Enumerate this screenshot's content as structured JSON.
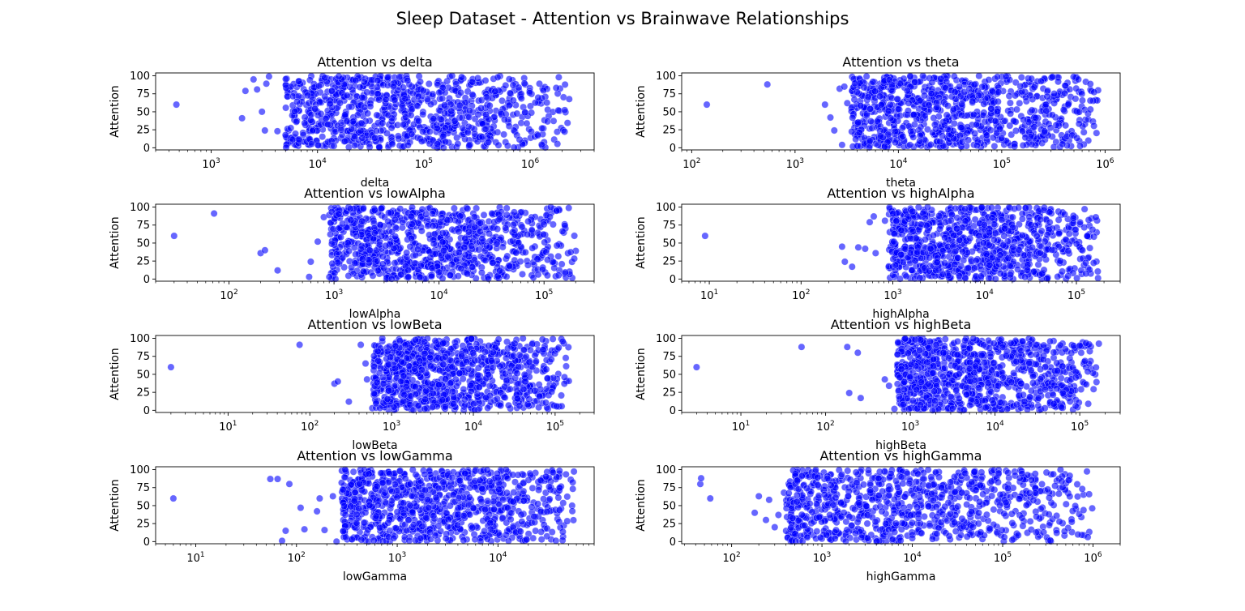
{
  "title": "Sleep Dataset - Attention vs Brainwave Relationships",
  "colors": {
    "point_fill": "#0000ff",
    "point_edge": "#ffffff",
    "axis": "#000000"
  },
  "chart_data": [
    {
      "type": "scatter",
      "title": "Attention vs delta",
      "xlabel": "delta",
      "ylabel": "Attention",
      "xscale": "log",
      "xlim": [
        300,
        4000000
      ],
      "ylim": [
        -3,
        104
      ],
      "xticks": [
        "10^3",
        "10^4",
        "10^5",
        "10^6"
      ],
      "yticks": [
        "0",
        "25",
        "50",
        "75",
        "100"
      ],
      "grid": false,
      "points": [
        [
          470,
          60
        ],
        [
          1950,
          41
        ],
        [
          2100,
          79
        ],
        [
          2500,
          95
        ],
        [
          2700,
          81
        ],
        [
          3000,
          50
        ],
        [
          3200,
          24
        ],
        [
          3300,
          89
        ],
        [
          3500,
          99
        ],
        [
          4200,
          23
        ]
      ],
      "cloud": {
        "xrange": [
          5000,
          2500000
        ],
        "yrange": [
          0,
          100
        ],
        "n": 900
      }
    },
    {
      "type": "scatter",
      "title": "Attention vs theta",
      "xlabel": "theta",
      "ylabel": "Attention",
      "xscale": "log",
      "xlim": [
        80,
        1400000
      ],
      "ylim": [
        -3,
        104
      ],
      "xticks": [
        "10^2",
        "10^3",
        "10^4",
        "10^5",
        "10^6"
      ],
      "yticks": [
        "0",
        "25",
        "50",
        "75",
        "100"
      ],
      "grid": false,
      "points": [
        [
          140,
          60
        ],
        [
          540,
          88
        ],
        [
          1950,
          60
        ],
        [
          2200,
          42
        ],
        [
          2400,
          24
        ],
        [
          2700,
          82
        ],
        [
          2850,
          4
        ],
        [
          3000,
          85
        ],
        [
          3200,
          62
        ]
      ],
      "cloud": {
        "xrange": [
          3500,
          900000
        ],
        "yrange": [
          0,
          100
        ],
        "n": 900
      }
    },
    {
      "type": "scatter",
      "title": "Attention vs lowAlpha",
      "xlabel": "lowAlpha",
      "ylabel": "Attention",
      "xscale": "log",
      "xlim": [
        20,
        300000
      ],
      "ylim": [
        -3,
        104
      ],
      "xticks": [
        "10^2",
        "10^3",
        "10^4",
        "10^5"
      ],
      "yticks": [
        "0",
        "25",
        "50",
        "75",
        "100"
      ],
      "grid": false,
      "points": [
        [
          30,
          60
        ],
        [
          72,
          91
        ],
        [
          200,
          36
        ],
        [
          220,
          40
        ],
        [
          290,
          12
        ],
        [
          580,
          3
        ],
        [
          600,
          24
        ],
        [
          700,
          52
        ],
        [
          800,
          86
        ]
      ],
      "cloud": {
        "xrange": [
          900,
          220000
        ],
        "yrange": [
          0,
          100
        ],
        "n": 900
      }
    },
    {
      "type": "scatter",
      "title": "Attention vs highAlpha",
      "xlabel": "highAlpha",
      "ylabel": "Attention",
      "xscale": "log",
      "xlim": [
        5,
        300000
      ],
      "ylim": [
        -3,
        104
      ],
      "xticks": [
        "10^1",
        "10^2",
        "10^3",
        "10^4",
        "10^5"
      ],
      "yticks": [
        "0",
        "25",
        "50",
        "75",
        "100"
      ],
      "grid": false,
      "points": [
        [
          9,
          60
        ],
        [
          280,
          45
        ],
        [
          300,
          24
        ],
        [
          360,
          17
        ],
        [
          420,
          44
        ],
        [
          500,
          42
        ],
        [
          560,
          79
        ],
        [
          620,
          87
        ],
        [
          650,
          36
        ],
        [
          820,
          81
        ]
      ],
      "cloud": {
        "xrange": [
          900,
          180000
        ],
        "yrange": [
          0,
          100
        ],
        "n": 900
      }
    },
    {
      "type": "scatter",
      "title": "Attention vs lowBeta",
      "xlabel": "lowBeta",
      "ylabel": "Attention",
      "xscale": "log",
      "xlim": [
        1.3,
        300000
      ],
      "ylim": [
        -3,
        104
      ],
      "xticks": [
        "10^1",
        "10^2",
        "10^3",
        "10^4",
        "10^5"
      ],
      "yticks": [
        "0",
        "25",
        "50",
        "75",
        "100"
      ],
      "grid": false,
      "points": [
        [
          2,
          60
        ],
        [
          75,
          91
        ],
        [
          200,
          37
        ],
        [
          220,
          40
        ],
        [
          300,
          12
        ],
        [
          420,
          91
        ],
        [
          480,
          65
        ],
        [
          500,
          43
        ],
        [
          580,
          3
        ]
      ],
      "cloud": {
        "xrange": [
          600,
          160000
        ],
        "yrange": [
          0,
          100
        ],
        "n": 900
      }
    },
    {
      "type": "scatter",
      "title": "Attention vs highBeta",
      "xlabel": "highBeta",
      "ylabel": "Attention",
      "xscale": "log",
      "xlim": [
        2,
        300000
      ],
      "ylim": [
        -3,
        104
      ],
      "xticks": [
        "10^1",
        "10^2",
        "10^3",
        "10^4",
        "10^5"
      ],
      "yticks": [
        "0",
        "25",
        "50",
        "75",
        "100"
      ],
      "grid": false,
      "points": [
        [
          3,
          60
        ],
        [
          52,
          88
        ],
        [
          180,
          88
        ],
        [
          190,
          24
        ],
        [
          240,
          80
        ],
        [
          260,
          17
        ],
        [
          500,
          43
        ],
        [
          560,
          34
        ],
        [
          650,
          2
        ]
      ],
      "cloud": {
        "xrange": [
          700,
          180000
        ],
        "yrange": [
          0,
          100
        ],
        "n": 900
      }
    },
    {
      "type": "scatter",
      "title": "Attention vs lowGamma",
      "xlabel": "lowGamma",
      "ylabel": "Attention",
      "xscale": "log",
      "xlim": [
        4,
        90000
      ],
      "ylim": [
        -3,
        104
      ],
      "xticks": [
        "10^1",
        "10^2",
        "10^3",
        "10^4"
      ],
      "yticks": [
        "0",
        "25",
        "50",
        "75",
        "100"
      ],
      "grid": false,
      "points": [
        [
          6,
          60
        ],
        [
          55,
          87
        ],
        [
          65,
          87
        ],
        [
          72,
          1
        ],
        [
          78,
          15
        ],
        [
          85,
          80
        ],
        [
          110,
          47
        ],
        [
          120,
          17
        ],
        [
          160,
          42
        ],
        [
          170,
          60
        ],
        [
          190,
          16
        ],
        [
          230,
          63
        ],
        [
          250,
          0
        ]
      ],
      "cloud": {
        "xrange": [
          280,
          60000
        ],
        "yrange": [
          0,
          100
        ],
        "n": 900
      }
    },
    {
      "type": "scatter",
      "title": "Attention vs highGamma",
      "xlabel": "highGamma",
      "ylabel": "Attention",
      "xscale": "log",
      "xlim": [
        28,
        2000000
      ],
      "ylim": [
        -3,
        104
      ],
      "xticks": [
        "10^2",
        "10^3",
        "10^4",
        "10^5",
        "10^6"
      ],
      "yticks": [
        "0",
        "25",
        "50",
        "75",
        "100"
      ],
      "grid": false,
      "points": [
        [
          45,
          80
        ],
        [
          46,
          88
        ],
        [
          58,
          60
        ],
        [
          180,
          40
        ],
        [
          200,
          63
        ],
        [
          240,
          30
        ],
        [
          260,
          58
        ],
        [
          300,
          20
        ],
        [
          330,
          37
        ],
        [
          380,
          68
        ]
      ],
      "cloud": {
        "xrange": [
          400,
          1000000
        ],
        "yrange": [
          0,
          100
        ],
        "n": 900
      }
    }
  ]
}
